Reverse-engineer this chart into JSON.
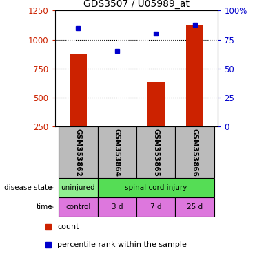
{
  "title": "GDS3507 / U05989_at",
  "samples": [
    "GSM353862",
    "GSM353864",
    "GSM353865",
    "GSM353866"
  ],
  "bar_values": [
    875,
    255,
    635,
    1130
  ],
  "dot_values": [
    85,
    65,
    80,
    88
  ],
  "bar_color": "#cc2200",
  "dot_color": "#0000cc",
  "ylim_left": [
    250,
    1250
  ],
  "ylim_right": [
    0,
    100
  ],
  "yticks_left": [
    250,
    500,
    750,
    1000,
    1250
  ],
  "yticks_right": [
    0,
    25,
    50,
    75,
    100
  ],
  "ytick_labels_right": [
    "0",
    "25",
    "50",
    "75",
    "100%"
  ],
  "grid_yticks": [
    500,
    750,
    1000
  ],
  "disease_state_labels": [
    "uninjured",
    "spinal cord injury"
  ],
  "disease_state_colors": [
    "#90ee90",
    "#55dd55"
  ],
  "time_labels": [
    "control",
    "3 d",
    "7 d",
    "25 d"
  ],
  "time_color": "#dd77dd",
  "row_label_disease": "disease state",
  "row_label_time": "time",
  "legend_count": "count",
  "legend_pct": "percentile rank within the sample",
  "sample_box_color": "#bbbbbb",
  "x_positions": [
    0,
    1,
    2,
    3
  ],
  "bar_width": 0.45
}
